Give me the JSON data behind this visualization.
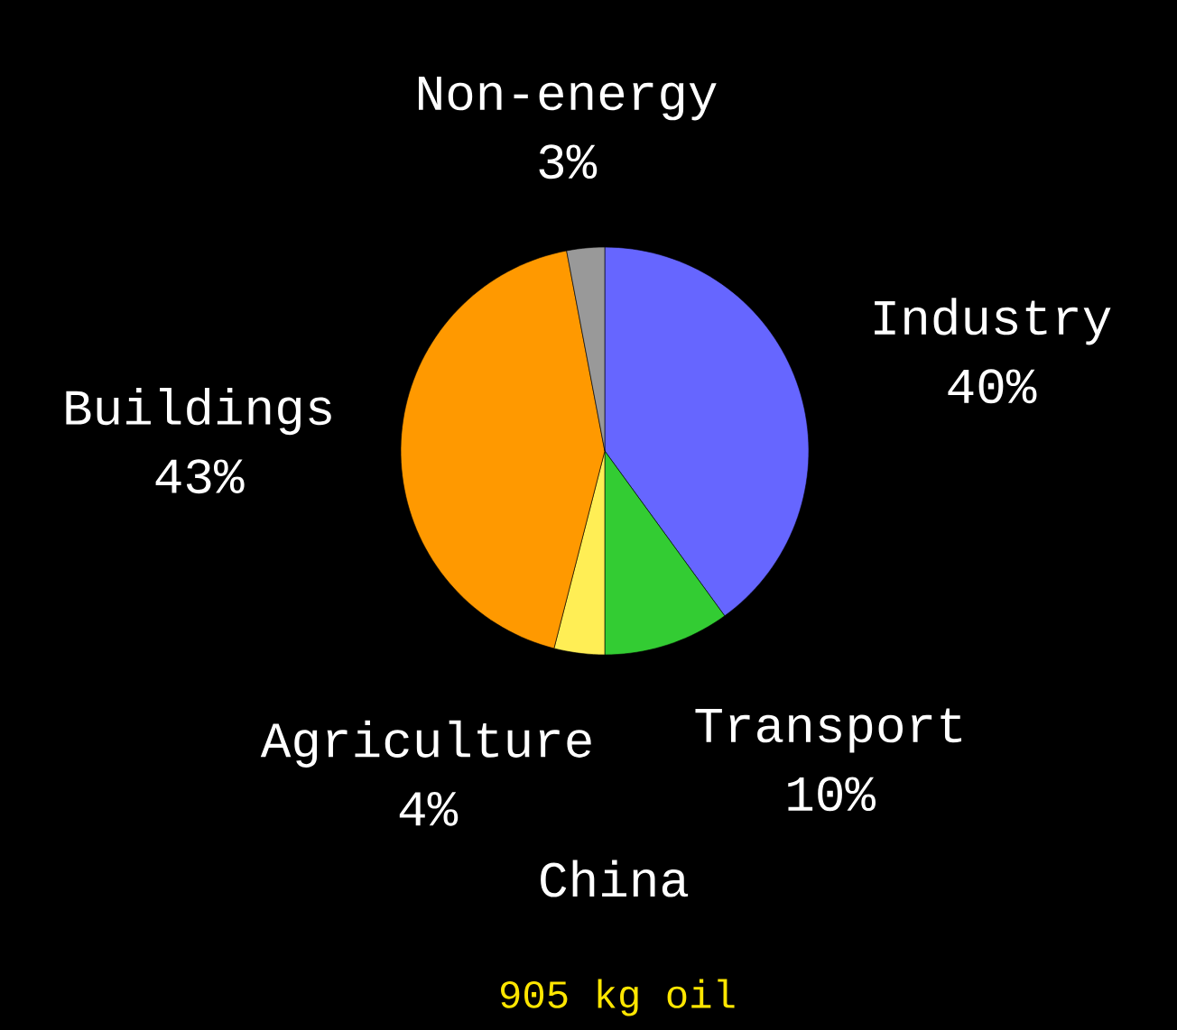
{
  "chart_data": {
    "type": "pie",
    "title": "China",
    "categories": [
      "Industry",
      "Transport",
      "Agriculture",
      "Buildings",
      "Non-energy"
    ],
    "values": [
      40,
      10,
      4,
      43,
      3
    ],
    "value_labels": [
      "40%",
      "10%",
      "4%",
      "43%",
      "3%"
    ],
    "colors": [
      "#6666ff",
      "#33cc33",
      "#ffee55",
      "#ff9900",
      "#999999"
    ],
    "annotations": [
      "905 kg oil"
    ]
  }
}
